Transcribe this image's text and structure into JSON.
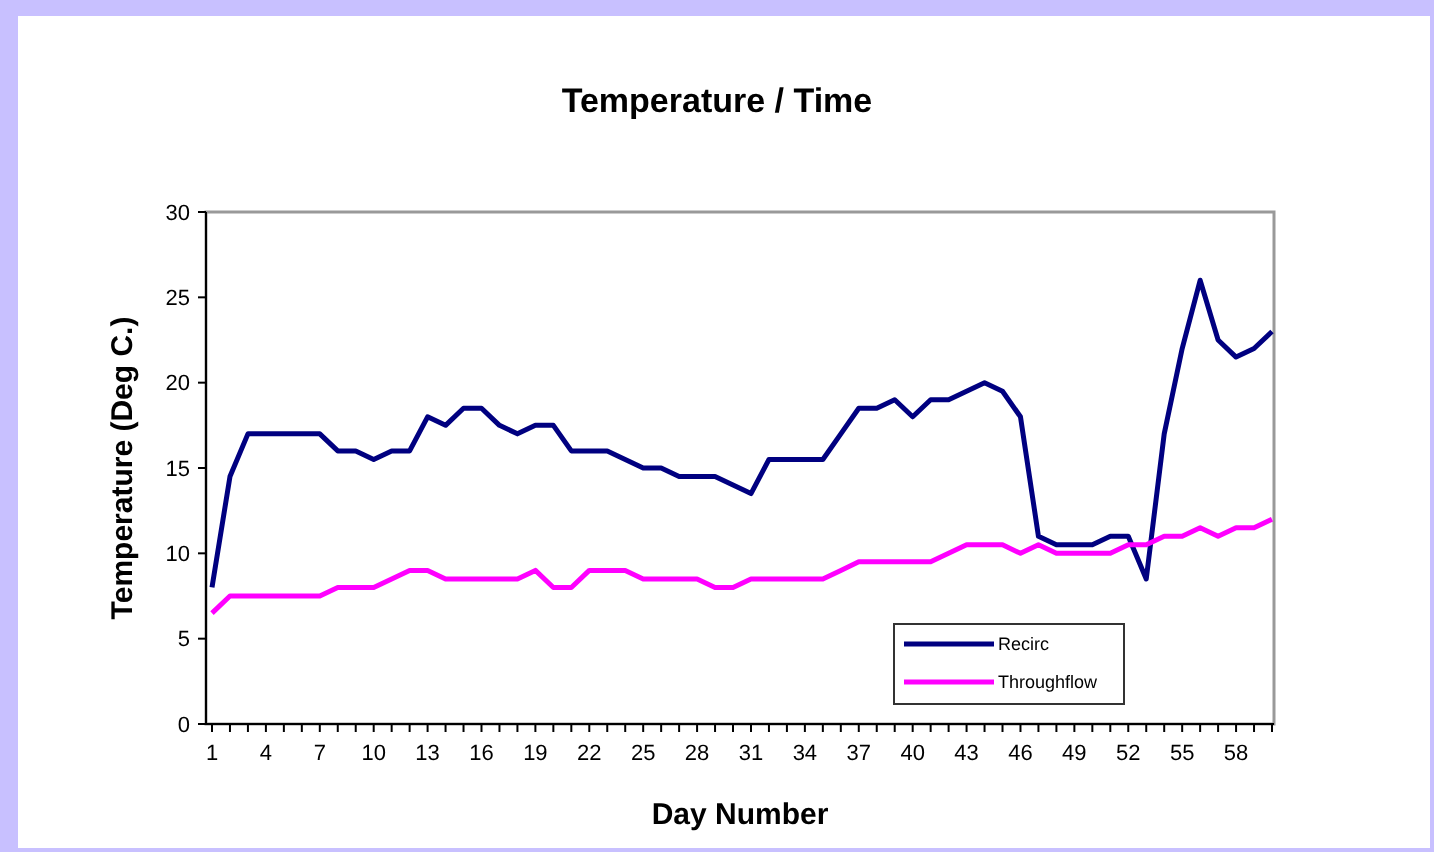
{
  "chart_data": {
    "type": "line",
    "title": "Temperature / Time",
    "xlabel": "Day Number",
    "ylabel": "Temperature (Deg C.)",
    "categories": [
      "1",
      null,
      null,
      "4",
      null,
      null,
      "7",
      null,
      null,
      "10",
      null,
      null,
      "13",
      null,
      null,
      "16",
      null,
      null,
      "19",
      null,
      null,
      "22",
      null,
      null,
      "25",
      null,
      null,
      "28",
      null,
      null,
      "31",
      null,
      null,
      "34",
      null,
      null,
      "37",
      null,
      null,
      "40",
      null,
      null,
      "43",
      null,
      null,
      "46",
      null,
      null,
      "49",
      null,
      null,
      "52",
      null,
      null,
      "55",
      null,
      null,
      "58",
      null,
      null
    ],
    "series": [
      {
        "name": "Recirc",
        "color": "#000080",
        "values": [
          8,
          14.5,
          17,
          17,
          17,
          17,
          17,
          16,
          16,
          15.5,
          16,
          16,
          18,
          17.5,
          18.5,
          18.5,
          17.5,
          17,
          17.5,
          17.5,
          16,
          16,
          16,
          15.5,
          15,
          15,
          14.5,
          14.5,
          14.5,
          14,
          13.5,
          15.5,
          15.5,
          15.5,
          15.5,
          17,
          18.5,
          18.5,
          19,
          18,
          19,
          19,
          19.5,
          20,
          19.5,
          18,
          11,
          10.5,
          10.5,
          10.5,
          11,
          11,
          8.5,
          17,
          22,
          26,
          22.5,
          21.5,
          22,
          23
        ]
      },
      {
        "name": "Throughflow",
        "color": "#ff00ff",
        "values": [
          6.5,
          7.5,
          7.5,
          7.5,
          7.5,
          7.5,
          7.5,
          8,
          8,
          8,
          8.5,
          9,
          9,
          8.5,
          8.5,
          8.5,
          8.5,
          8.5,
          9,
          8,
          8,
          9,
          9,
          9,
          8.5,
          8.5,
          8.5,
          8.5,
          8,
          8,
          8.5,
          8.5,
          8.5,
          8.5,
          8.5,
          9,
          9.5,
          9.5,
          9.5,
          9.5,
          9.5,
          10,
          10.5,
          10.5,
          10.5,
          10,
          10.5,
          10,
          10,
          10,
          10,
          10.5,
          10.5,
          11,
          11,
          11.5,
          11,
          11.5,
          11.5,
          12
        ]
      }
    ],
    "ylim": [
      0,
      30
    ],
    "yticks": [
      0,
      5,
      10,
      15,
      20,
      25,
      30
    ],
    "grid": false,
    "legend": "bottom right",
    "marker": "none",
    "line_style": "solid"
  }
}
